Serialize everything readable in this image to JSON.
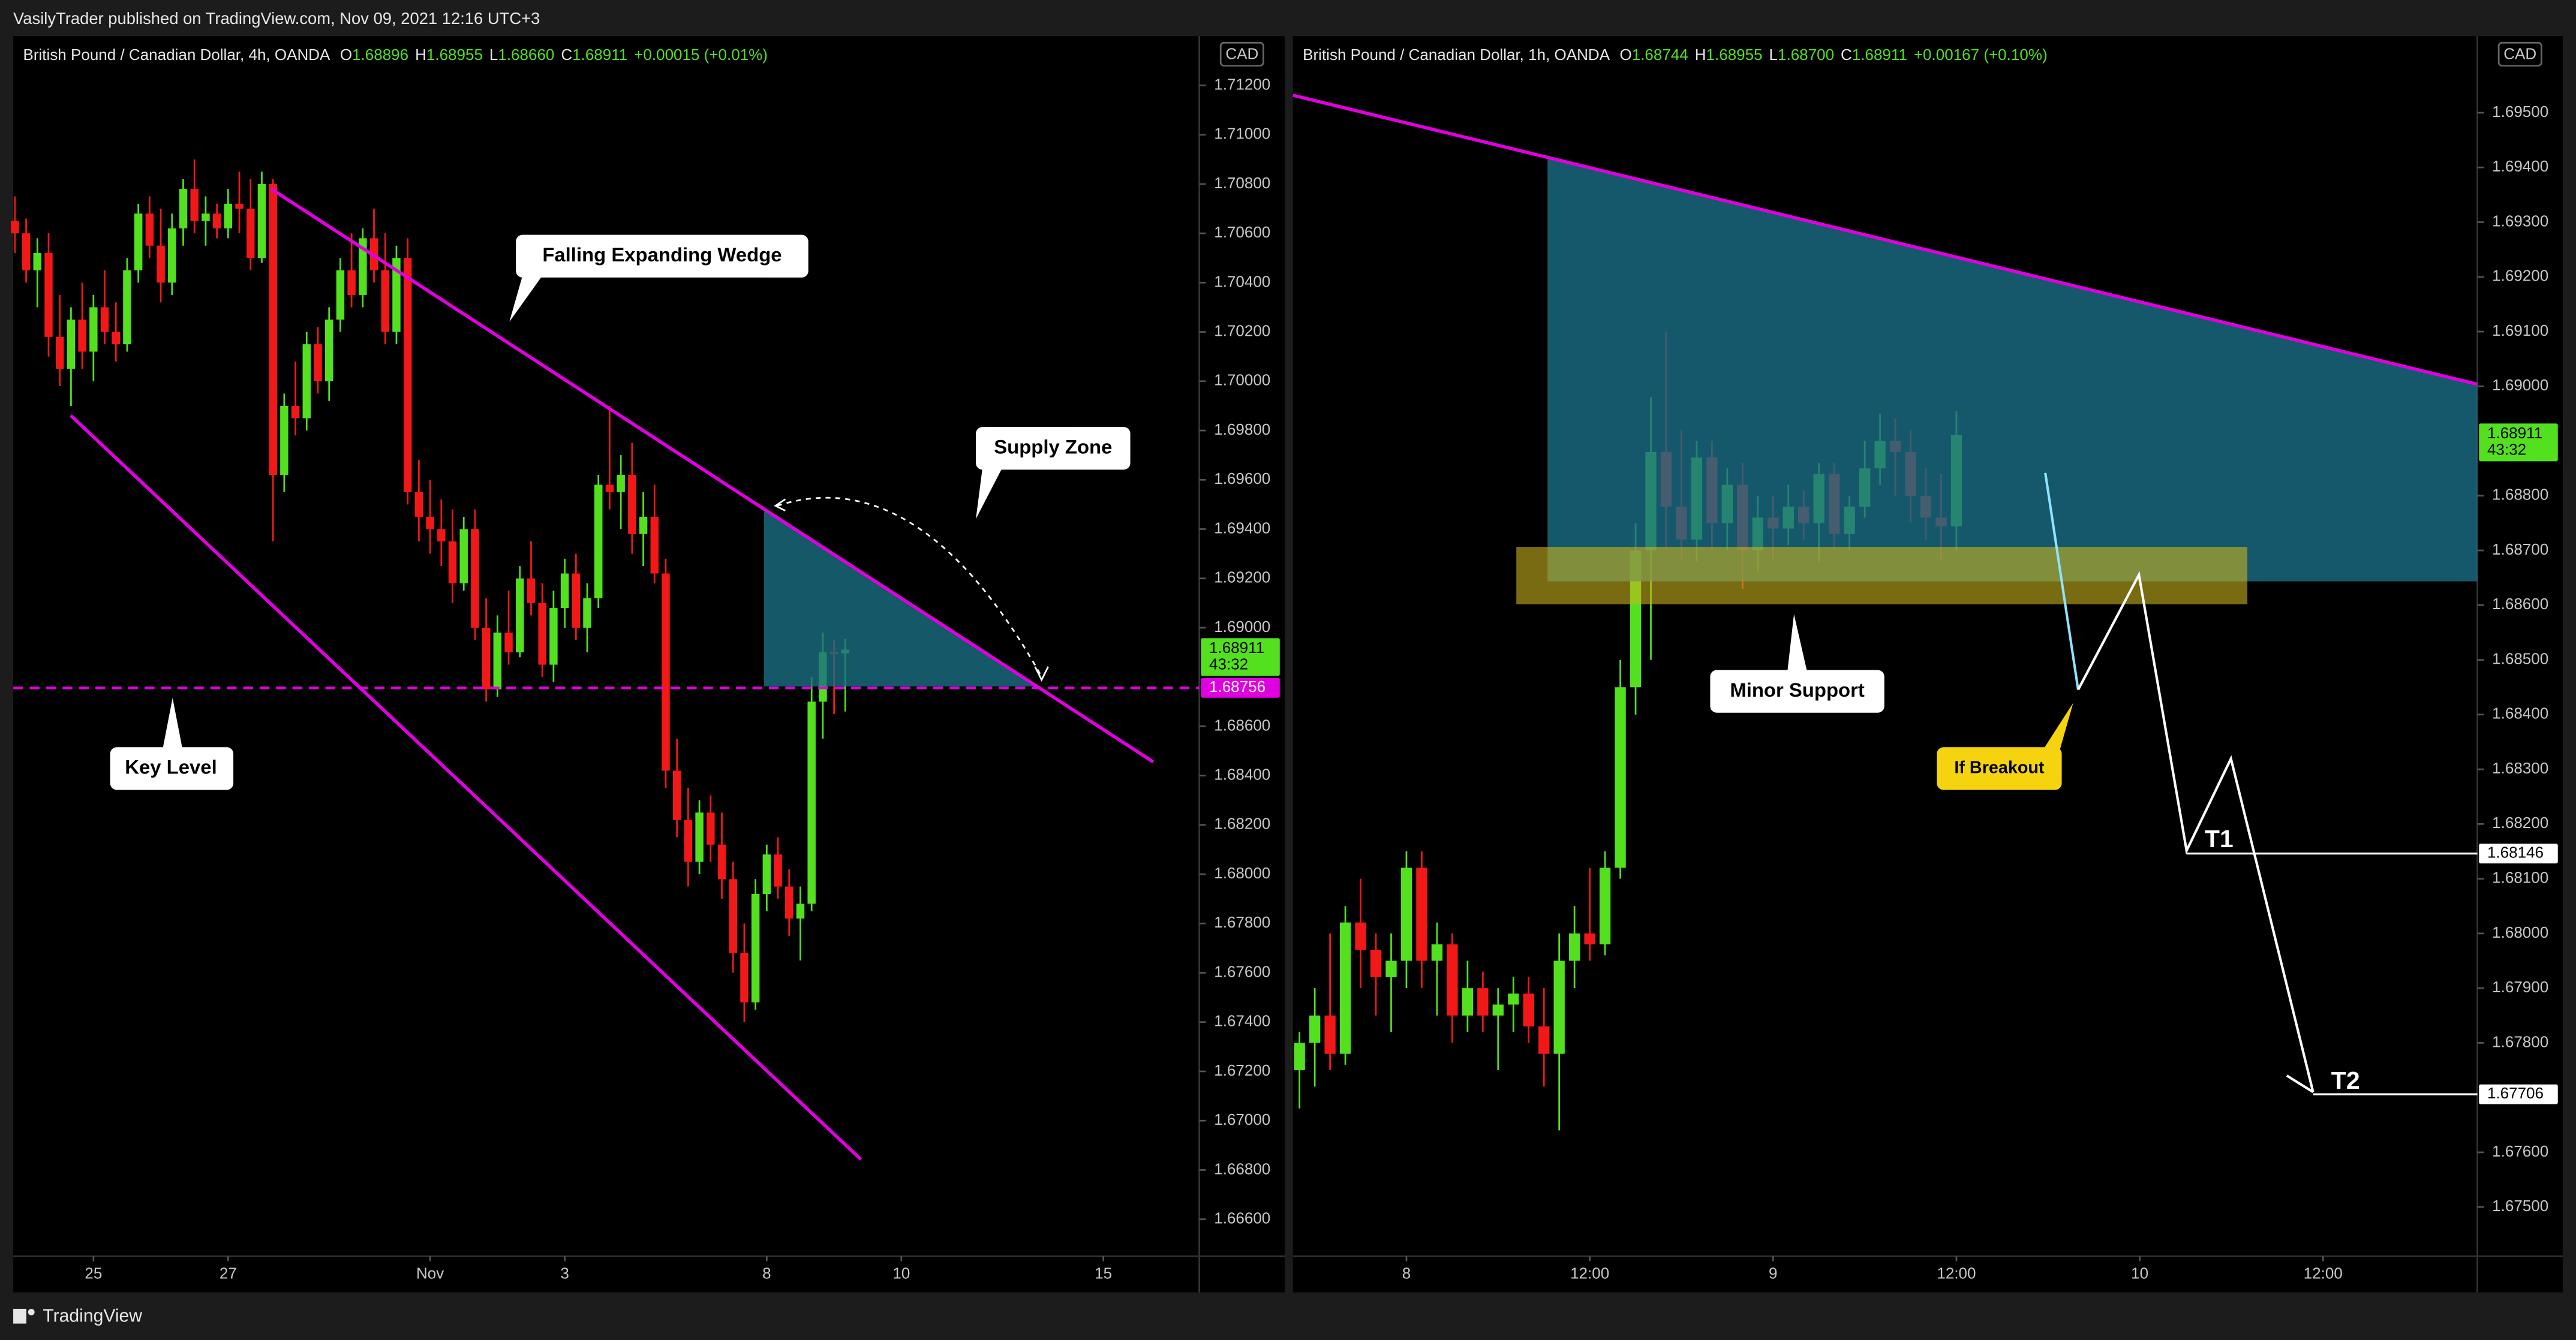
{
  "header": {
    "published": "VasilyTrader published on TradingView.com, Nov 09, 2021 12:16 UTC+3",
    "footer": "TradingView"
  },
  "chart_data": [
    {
      "type": "candlestick",
      "symbol": "British Pound / Canadian Dollar, 4h, OANDA",
      "legend": [
        {
          "key": "O",
          "value": "1.68896"
        },
        {
          "key": "H",
          "value": "1.68955"
        },
        {
          "key": "L",
          "value": "1.68660"
        },
        {
          "key": "C",
          "value": "1.68911"
        }
      ],
      "change": "+0.00015 (+0.01%)",
      "currency": "CAD",
      "up_color": "#53e01f",
      "down_color": "#f21818",
      "ylim": [
        1.6645,
        1.714
      ],
      "xlim": [
        -0.15,
        105.55
      ],
      "yticks": [
        {
          "value": 1.712,
          "label": "1.71200"
        },
        {
          "value": 1.71,
          "label": "1.71000"
        },
        {
          "value": 1.708,
          "label": "1.70800"
        },
        {
          "value": 1.706,
          "label": "1.70600"
        },
        {
          "value": 1.704,
          "label": "1.70400"
        },
        {
          "value": 1.702,
          "label": "1.70200"
        },
        {
          "value": 1.7,
          "label": "1.70000"
        },
        {
          "value": 1.698,
          "label": "1.69800"
        },
        {
          "value": 1.696,
          "label": "1.69600"
        },
        {
          "value": 1.694,
          "label": "1.69400"
        },
        {
          "value": 1.692,
          "label": "1.69200"
        },
        {
          "value": 1.69,
          "label": "1.69000"
        },
        {
          "value": 1.686,
          "label": "1.68600"
        },
        {
          "value": 1.684,
          "label": "1.68400"
        },
        {
          "value": 1.682,
          "label": "1.68200"
        },
        {
          "value": 1.68,
          "label": "1.68000"
        },
        {
          "value": 1.678,
          "label": "1.67800"
        },
        {
          "value": 1.676,
          "label": "1.67600"
        },
        {
          "value": 1.674,
          "label": "1.67400"
        },
        {
          "value": 1.672,
          "label": "1.67200"
        },
        {
          "value": 1.67,
          "label": "1.67000"
        },
        {
          "value": 1.668,
          "label": "1.66800"
        },
        {
          "value": 1.666,
          "label": "1.66600"
        }
      ],
      "xticks": [
        {
          "value": 7,
          "label": "25"
        },
        {
          "value": 19,
          "label": "27"
        },
        {
          "value": 37,
          "label": "Nov"
        },
        {
          "value": 49,
          "label": "3"
        },
        {
          "value": 67,
          "label": "8"
        },
        {
          "value": 79,
          "label": "10"
        },
        {
          "value": 97,
          "label": "15"
        }
      ],
      "last_price": {
        "value": 1.68911,
        "countdown": "43:32",
        "color": "#53e01f"
      },
      "levels": [
        {
          "value": 1.68756,
          "color": "#e000e0"
        }
      ],
      "annotations": [
        "Falling  Expanding Wedge",
        "Supply Zone",
        "Key Level"
      ],
      "candles": [
        [
          1.7065,
          1.7075,
          1.7052,
          1.706
        ],
        [
          1.706,
          1.7066,
          1.704,
          1.7045
        ],
        [
          1.7045,
          1.7058,
          1.703,
          1.7052
        ],
        [
          1.7052,
          1.706,
          1.701,
          1.7018
        ],
        [
          1.7018,
          1.7035,
          1.6998,
          1.7005
        ],
        [
          1.7005,
          1.703,
          1.699,
          1.7025
        ],
        [
          1.7025,
          1.704,
          1.7005,
          1.7012
        ],
        [
          1.7012,
          1.7035,
          1.7,
          1.703
        ],
        [
          1.703,
          1.7045,
          1.7015,
          1.702
        ],
        [
          1.702,
          1.7032,
          1.7008,
          1.7015
        ],
        [
          1.7015,
          1.705,
          1.7012,
          1.7045
        ],
        [
          1.7045,
          1.7072,
          1.704,
          1.7068
        ],
        [
          1.7068,
          1.7075,
          1.705,
          1.7055
        ],
        [
          1.7055,
          1.707,
          1.7032,
          1.704
        ],
        [
          1.704,
          1.7068,
          1.7035,
          1.7062
        ],
        [
          1.7062,
          1.7082,
          1.7055,
          1.7078
        ],
        [
          1.7078,
          1.709,
          1.706,
          1.7065
        ],
        [
          1.7065,
          1.7075,
          1.7055,
          1.7068
        ],
        [
          1.7068,
          1.7072,
          1.7058,
          1.7062
        ],
        [
          1.7062,
          1.7078,
          1.7058,
          1.7072
        ],
        [
          1.7072,
          1.7085,
          1.706,
          1.707
        ],
        [
          1.707,
          1.7082,
          1.7045,
          1.705
        ],
        [
          1.705,
          1.7085,
          1.7048,
          1.708
        ],
        [
          1.708,
          1.7082,
          1.6935,
          1.6962
        ],
        [
          1.6962,
          1.6995,
          1.6955,
          1.699
        ],
        [
          1.699,
          1.7008,
          1.6978,
          1.6985
        ],
        [
          1.6985,
          1.702,
          1.698,
          1.7015
        ],
        [
          1.7015,
          1.7022,
          1.6995,
          1.7
        ],
        [
          1.7,
          1.703,
          1.6992,
          1.7025
        ],
        [
          1.7025,
          1.705,
          1.702,
          1.7045
        ],
        [
          1.7045,
          1.706,
          1.703,
          1.7035
        ],
        [
          1.7035,
          1.7062,
          1.703,
          1.7058
        ],
        [
          1.7058,
          1.707,
          1.704,
          1.7045
        ],
        [
          1.7045,
          1.706,
          1.7015,
          1.702
        ],
        [
          1.702,
          1.7055,
          1.7015,
          1.705
        ],
        [
          1.705,
          1.7058,
          1.695,
          1.6955
        ],
        [
          1.6955,
          1.6968,
          1.6935,
          1.6945
        ],
        [
          1.6945,
          1.696,
          1.693,
          1.694
        ],
        [
          1.694,
          1.6952,
          1.6925,
          1.6935
        ],
        [
          1.6935,
          1.6948,
          1.691,
          1.6918
        ],
        [
          1.6918,
          1.6945,
          1.6915,
          1.694
        ],
        [
          1.694,
          1.6948,
          1.6895,
          1.69
        ],
        [
          1.69,
          1.6912,
          1.687,
          1.6875
        ],
        [
          1.6875,
          1.6905,
          1.6872,
          1.6898
        ],
        [
          1.6898,
          1.6915,
          1.6885,
          1.689
        ],
        [
          1.689,
          1.6925,
          1.6888,
          1.692
        ],
        [
          1.692,
          1.6935,
          1.6905,
          1.691
        ],
        [
          1.691,
          1.6918,
          1.688,
          1.6885
        ],
        [
          1.6885,
          1.6915,
          1.6878,
          1.6908
        ],
        [
          1.6908,
          1.6928,
          1.69,
          1.6922
        ],
        [
          1.6922,
          1.693,
          1.6895,
          1.69
        ],
        [
          1.69,
          1.6918,
          1.689,
          1.6912
        ],
        [
          1.6912,
          1.6962,
          1.6908,
          1.6958
        ],
        [
          1.6958,
          1.699,
          1.6948,
          1.6955
        ],
        [
          1.6955,
          1.697,
          1.694,
          1.6962
        ],
        [
          1.6962,
          1.6975,
          1.693,
          1.6938
        ],
        [
          1.6938,
          1.6955,
          1.6925,
          1.6945
        ],
        [
          1.6945,
          1.6958,
          1.6918,
          1.6922
        ],
        [
          1.6922,
          1.6928,
          1.6835,
          1.6842
        ],
        [
          1.6842,
          1.6855,
          1.6815,
          1.6822
        ],
        [
          1.6822,
          1.6835,
          1.6795,
          1.6805
        ],
        [
          1.6805,
          1.683,
          1.68,
          1.6825
        ],
        [
          1.6825,
          1.6832,
          1.6805,
          1.6812
        ],
        [
          1.6812,
          1.6825,
          1.679,
          1.6798
        ],
        [
          1.6798,
          1.6805,
          1.676,
          1.6768
        ],
        [
          1.6768,
          1.678,
          1.674,
          1.6748
        ],
        [
          1.6748,
          1.6798,
          1.6745,
          1.6792
        ],
        [
          1.6792,
          1.6812,
          1.6785,
          1.6808
        ],
        [
          1.6808,
          1.6815,
          1.679,
          1.6795
        ],
        [
          1.6795,
          1.6802,
          1.6775,
          1.6782
        ],
        [
          1.6782,
          1.6795,
          1.6765,
          1.6788
        ],
        [
          1.6788,
          1.688,
          1.6785,
          1.687
        ],
        [
          1.687,
          1.6898,
          1.6855,
          1.689
        ],
        [
          1.689,
          1.6895,
          1.6865,
          1.68896
        ],
        [
          1.68896,
          1.68955,
          1.6866,
          1.68911
        ]
      ]
    },
    {
      "type": "candlestick",
      "symbol": "British Pound / Canadian Dollar, 1h, OANDA",
      "legend": [
        {
          "key": "O",
          "value": "1.68744"
        },
        {
          "key": "H",
          "value": "1.68955"
        },
        {
          "key": "L",
          "value": "1.68700"
        },
        {
          "key": "C",
          "value": "1.68911"
        }
      ],
      "change": "+0.00167 (+0.10%)",
      "currency": "CAD",
      "up_color": "#53e01f",
      "down_color": "#f21818",
      "ylim": [
        1.6741,
        1.6964
      ],
      "xlim": [
        -0.43,
        77.1
      ],
      "yticks": [
        {
          "value": 1.695,
          "label": "1.69500"
        },
        {
          "value": 1.694,
          "label": "1.69400"
        },
        {
          "value": 1.693,
          "label": "1.69300"
        },
        {
          "value": 1.692,
          "label": "1.69200"
        },
        {
          "value": 1.691,
          "label": "1.69100"
        },
        {
          "value": 1.69,
          "label": "1.69000"
        },
        {
          "value": 1.688,
          "label": "1.68800"
        },
        {
          "value": 1.687,
          "label": "1.68700"
        },
        {
          "value": 1.686,
          "label": "1.68600"
        },
        {
          "value": 1.685,
          "label": "1.68500"
        },
        {
          "value": 1.684,
          "label": "1.68400"
        },
        {
          "value": 1.683,
          "label": "1.68300"
        },
        {
          "value": 1.682,
          "label": "1.68200"
        },
        {
          "value": 1.681,
          "label": "1.68100"
        },
        {
          "value": 1.68,
          "label": "1.68000"
        },
        {
          "value": 1.679,
          "label": "1.67900"
        },
        {
          "value": 1.678,
          "label": "1.67800"
        },
        {
          "value": 1.676,
          "label": "1.67600"
        },
        {
          "value": 1.675,
          "label": "1.67500"
        }
      ],
      "xticks": [
        {
          "value": 7,
          "label": "8"
        },
        {
          "value": 19,
          "label": "12:00"
        },
        {
          "value": 31,
          "label": "9"
        },
        {
          "value": 43,
          "label": "12:00"
        },
        {
          "value": 55,
          "label": "10"
        },
        {
          "value": 67,
          "label": "12:00"
        }
      ],
      "last_price": {
        "value": 1.68911,
        "countdown": "43:32",
        "color": "#53e01f"
      },
      "levels": [
        {
          "value": 1.68146,
          "color": "#ffffff"
        },
        {
          "value": 1.67706,
          "color": "#ffffff"
        }
      ],
      "annotations": [
        "Minor Support",
        "If Breakout",
        "T1",
        "T2"
      ],
      "candles": [
        [
          1.6775,
          1.6782,
          1.6768,
          1.678
        ],
        [
          1.678,
          1.679,
          1.6772,
          1.6785
        ],
        [
          1.6785,
          1.68,
          1.6775,
          1.6778
        ],
        [
          1.6778,
          1.6805,
          1.6776,
          1.6802
        ],
        [
          1.6802,
          1.681,
          1.679,
          1.6797
        ],
        [
          1.6797,
          1.68,
          1.6785,
          1.6792
        ],
        [
          1.6792,
          1.68,
          1.6782,
          1.6795
        ],
        [
          1.6795,
          1.6815,
          1.679,
          1.6812
        ],
        [
          1.6812,
          1.6815,
          1.679,
          1.6795
        ],
        [
          1.6795,
          1.6802,
          1.6785,
          1.6798
        ],
        [
          1.6798,
          1.68,
          1.678,
          1.6785
        ],
        [
          1.6785,
          1.6795,
          1.6782,
          1.679
        ],
        [
          1.679,
          1.6793,
          1.6782,
          1.6785
        ],
        [
          1.6785,
          1.679,
          1.6775,
          1.6787
        ],
        [
          1.6787,
          1.6792,
          1.6782,
          1.6789
        ],
        [
          1.6789,
          1.6792,
          1.678,
          1.6783
        ],
        [
          1.6783,
          1.679,
          1.6772,
          1.6778
        ],
        [
          1.6778,
          1.68,
          1.6764,
          1.6795
        ],
        [
          1.6795,
          1.6805,
          1.679,
          1.68
        ],
        [
          1.68,
          1.6812,
          1.6795,
          1.6798
        ],
        [
          1.6798,
          1.6815,
          1.6796,
          1.6812
        ],
        [
          1.6812,
          1.685,
          1.681,
          1.6845
        ],
        [
          1.6845,
          1.6875,
          1.684,
          1.687
        ],
        [
          1.687,
          1.6898,
          1.685,
          1.6888
        ],
        [
          1.6888,
          1.691,
          1.687,
          1.6878
        ],
        [
          1.6878,
          1.6892,
          1.6868,
          1.6872
        ],
        [
          1.6872,
          1.689,
          1.6868,
          1.6887
        ],
        [
          1.6887,
          1.689,
          1.687,
          1.6875
        ],
        [
          1.6875,
          1.6885,
          1.687,
          1.6882
        ],
        [
          1.6882,
          1.6886,
          1.6863,
          1.687
        ],
        [
          1.687,
          1.688,
          1.6866,
          1.6876
        ],
        [
          1.6876,
          1.688,
          1.6868,
          1.6874
        ],
        [
          1.6874,
          1.6882,
          1.6871,
          1.6878
        ],
        [
          1.6878,
          1.6881,
          1.6872,
          1.6875
        ],
        [
          1.6875,
          1.6886,
          1.6868,
          1.6884
        ],
        [
          1.6884,
          1.6886,
          1.687,
          1.6873
        ],
        [
          1.6873,
          1.688,
          1.687,
          1.6878
        ],
        [
          1.6878,
          1.689,
          1.6876,
          1.6885
        ],
        [
          1.6885,
          1.6895,
          1.6882,
          1.689
        ],
        [
          1.689,
          1.6894,
          1.688,
          1.6888
        ],
        [
          1.6888,
          1.6892,
          1.6875,
          1.688
        ],
        [
          1.688,
          1.6885,
          1.6872,
          1.6876
        ],
        [
          1.6876,
          1.6884,
          1.6868,
          1.68744
        ],
        [
          1.68744,
          1.68955,
          1.687,
          1.68911
        ]
      ]
    }
  ]
}
